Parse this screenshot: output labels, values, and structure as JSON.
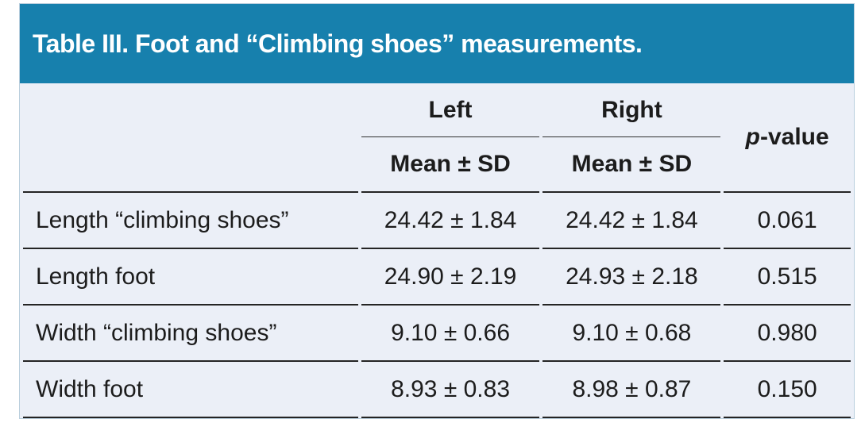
{
  "title": "Table III. Foot and “Climbing shoes” measurements.",
  "header": {
    "left": "Left",
    "right": "Right",
    "p_italic": "p",
    "p_rest": "-value",
    "subheader": "Mean ± SD"
  },
  "rows": [
    {
      "label": "Length “climbing shoes”",
      "left": "24.42 ± 1.84",
      "right": "24.42 ± 1.84",
      "p": "0.061"
    },
    {
      "label": "Length foot",
      "left": "24.90 ± 2.19",
      "right": "24.93 ± 2.18",
      "p": "0.515"
    },
    {
      "label": "Width “climbing shoes”",
      "left": "9.10 ± 0.66",
      "right": "9.10 ± 0.68",
      "p": "0.980"
    },
    {
      "label": "Width foot",
      "left": "8.93 ± 0.83",
      "right": "8.98 ± 0.87",
      "p": "0.150"
    }
  ],
  "colors": {
    "banner_blue": "#1780ad",
    "table_background": "#ebeff7",
    "rule": "#242424",
    "title_text": "#ffffff"
  }
}
